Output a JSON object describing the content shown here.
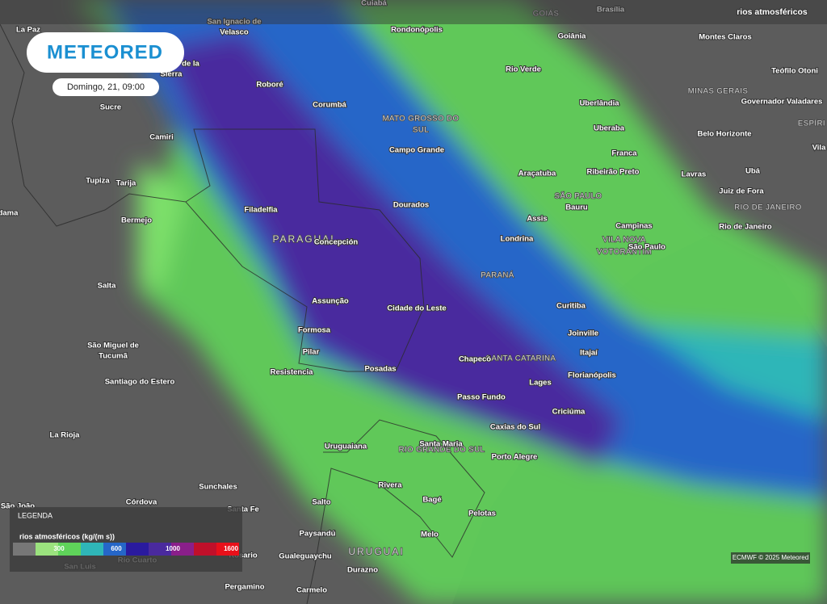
{
  "header": {
    "service": "rios atmosféricos"
  },
  "logo": "METEORED",
  "date": "Domingo, 21, 09:00",
  "cities": [
    "Cuiabá",
    "Brasília",
    "La Paz",
    "San Ignacio de",
    "Velasco",
    "Rondonópolis",
    "Goiânia",
    "Montes Claros",
    "de la",
    "Sierra",
    "Rio Verde",
    "Teófilo Otoni",
    "Roboré",
    "Governador Valadares",
    "Sucre",
    "Corumbá",
    "Uberlândia",
    "Uberaba",
    "Belo Horizonte",
    "Camiri",
    "Vila",
    "Campo Grande",
    "Franca",
    "Tupiza",
    "Tarija",
    "Filadelfia",
    "Dourados",
    "Araçatuba",
    "Ribeirão Preto",
    "Lavras",
    "Ubá",
    "Juiz de Fora",
    "Bauru",
    "dama",
    "Bermejo",
    "Assis",
    "Campinas",
    "Rio de Janeiro",
    "Concepción",
    "Londrina",
    "São Paulo",
    "Salta",
    "Assunção",
    "Cidade do Leste",
    "Curitiba",
    "Formosa",
    "Joinville",
    "São Miguel de",
    "Tucumã",
    "Pilar",
    "Itajaí",
    "Chapecó",
    "Resistencia",
    "Posadas",
    "Florianópolis",
    "Lages",
    "Santiago do Estero",
    "Passo Fundo",
    "Criciúma",
    "Caxias do Sul",
    "La Rioja",
    "Uruguaiana",
    "Santa Maria",
    "Porto Alegre",
    "Rivera",
    "Sunchales",
    "Córdova",
    "Bagé",
    "Santa Fe",
    "São João",
    "Salto",
    "Pelotas",
    "Paysandú",
    "Melo",
    "Rosario",
    "Gualeguaychu",
    "Río Cuarto",
    "San Luis",
    "Durazno",
    "Pergamino",
    "Carmelo"
  ],
  "regions": [
    "GOIÁS",
    "MINAS GERAIS",
    "MATO GROSSO DO",
    "SUL",
    "ESPÍRI",
    "SÃO PAULO",
    "RIO DE JANEIRO",
    "PARAGUAI",
    "VILA NOVA",
    "VOTORANTIM",
    "PARANÁ",
    "SANTA CATARINA",
    "RIO GRANDE DO SUL",
    "URUGUAI"
  ],
  "legend": {
    "title": "LEGENDA",
    "subtitle": "rios atmosféricos (kg/(m s))",
    "ticks": [
      300,
      600,
      1000,
      1600
    ]
  },
  "credit": "ECMWF © 2025 Meteored"
}
